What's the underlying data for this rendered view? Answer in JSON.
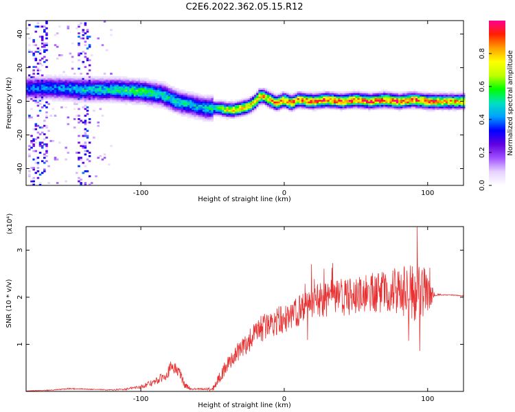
{
  "title": "C2E6.2022.362.05.15.R12",
  "chart_data": [
    {
      "type": "heatmap",
      "xlabel": "Height of straight line (km)",
      "ylabel": "Frequency (Hz)",
      "xlim": [
        -180,
        125
      ],
      "ylim": [
        -50,
        48
      ],
      "xticks": [
        -100,
        0,
        100
      ],
      "yticks": [
        -40,
        -20,
        0,
        20,
        40
      ],
      "colorbar": {
        "label": "Normalized spectral amplitude",
        "range": [
          0.0,
          1.0
        ],
        "ticks": [
          0.0,
          0.2,
          0.4,
          0.6,
          0.8
        ],
        "colors": [
          "#ffffff",
          "#e6d2ff",
          "#a050ff",
          "#6000e0",
          "#0000ff",
          "#00a0ff",
          "#00e0c0",
          "#00ff00",
          "#c0ff00",
          "#ffff00",
          "#ffa000",
          "#ff2000",
          "#ff0090"
        ]
      },
      "ridge": {
        "x": [
          -180,
          -160,
          -140,
          -120,
          -100,
          -85,
          -75,
          -65,
          -55,
          -50,
          -45,
          -40,
          -35,
          -30,
          -25,
          -20,
          -17,
          -14,
          -10,
          -5,
          0,
          5,
          10,
          20,
          30,
          40,
          50,
          60,
          70,
          80,
          90,
          100,
          110,
          125
        ],
        "freq": [
          8,
          8,
          7,
          7,
          6,
          4,
          0,
          -2,
          -4,
          -4,
          -4,
          -5,
          -5,
          -4,
          -3,
          0,
          3,
          3,
          1,
          -1,
          1,
          -1,
          1,
          0,
          1,
          0,
          1,
          0,
          1,
          0,
          1,
          0,
          0,
          0
        ],
        "amp": [
          0.4,
          0.45,
          0.5,
          0.55,
          0.6,
          0.55,
          0.55,
          0.5,
          0.5,
          0.55,
          0.6,
          0.8,
          0.8,
          0.8,
          0.8,
          0.85,
          0.85,
          0.85,
          0.85,
          0.9,
          0.9,
          0.95,
          0.9,
          0.95,
          0.95,
          0.95,
          0.95,
          0.95,
          0.95,
          0.95,
          0.95,
          0.95,
          0.9,
          0.85
        ]
      }
    },
    {
      "type": "line",
      "xlabel": "Height of straight line (km)",
      "ylabel": "SNR (10 * v/v)",
      "yscale_label": "(x10⁴)",
      "xlim": [
        -180,
        125
      ],
      "ylim": [
        0,
        3.5
      ],
      "xticks": [
        -100,
        0,
        100
      ],
      "yticks": [
        1,
        2,
        3
      ],
      "series": [
        {
          "color": "#e83030",
          "x": [
            -180,
            -160,
            -150,
            -140,
            -120,
            -110,
            -100,
            -90,
            -85,
            -80,
            -78,
            -75,
            -72,
            -70,
            -65,
            -60,
            -55,
            -50,
            -45,
            -42,
            -40,
            -35,
            -30,
            -25,
            -20,
            -15,
            -10,
            -5,
            0,
            5,
            10,
            15,
            20,
            25,
            30,
            35,
            40,
            45,
            50,
            55,
            60,
            65,
            70,
            75,
            80,
            85,
            90,
            95,
            98,
            100,
            103,
            105,
            110,
            115,
            125
          ],
          "y": [
            0.01,
            0.03,
            0.06,
            0.05,
            0.03,
            0.05,
            0.1,
            0.2,
            0.3,
            0.45,
            0.55,
            0.45,
            0.35,
            0.15,
            0.05,
            0.05,
            0.05,
            0.05,
            0.3,
            0.45,
            0.55,
            0.75,
            0.9,
            1.05,
            1.2,
            1.35,
            1.45,
            1.5,
            1.55,
            1.65,
            1.7,
            1.8,
            1.9,
            1.95,
            1.95,
            2.0,
            2.0,
            2.0,
            2.05,
            2.05,
            2.1,
            2.1,
            2.1,
            2.15,
            2.1,
            2.15,
            2.1,
            2.1,
            2.15,
            2.1,
            2.05,
            2.05,
            2.05,
            2.05,
            2.03
          ],
          "noise": [
            0.005,
            0.01,
            0.015,
            0.01,
            0.01,
            0.02,
            0.04,
            0.08,
            0.1,
            0.15,
            0.15,
            0.12,
            0.12,
            0.08,
            0.02,
            0.02,
            0.02,
            0.05,
            0.12,
            0.15,
            0.15,
            0.2,
            0.22,
            0.25,
            0.28,
            0.3,
            0.3,
            0.3,
            0.32,
            0.32,
            0.32,
            0.35,
            0.38,
            0.38,
            0.38,
            0.4,
            0.4,
            0.4,
            0.4,
            0.4,
            0.42,
            0.42,
            0.45,
            0.45,
            0.5,
            0.55,
            0.6,
            0.65,
            0.5,
            0.4,
            0.2,
            0.04,
            0.01,
            0.01,
            0.01
          ]
        }
      ]
    }
  ]
}
